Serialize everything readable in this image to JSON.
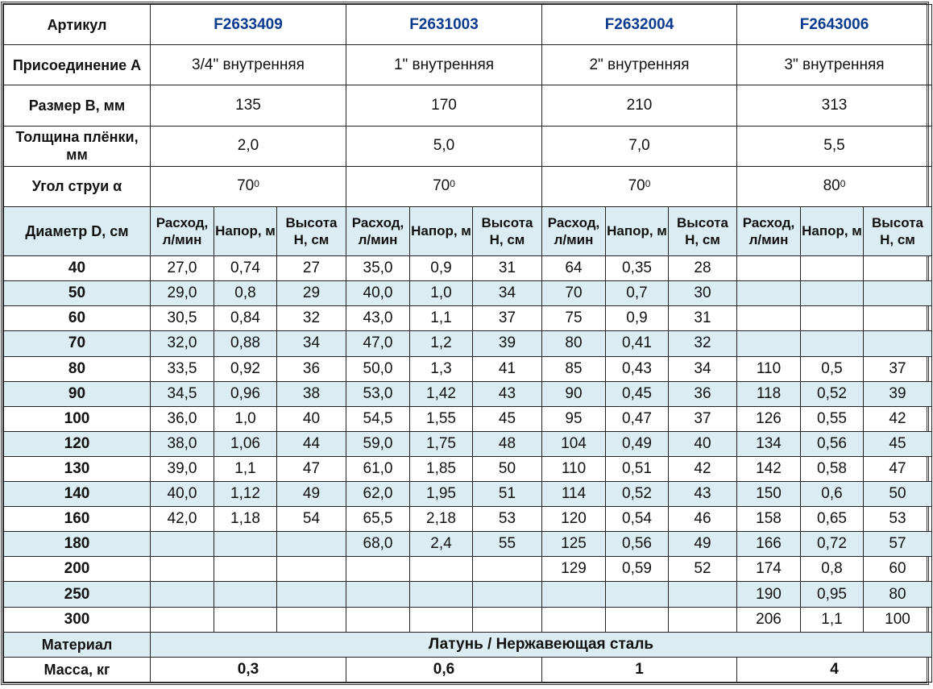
{
  "labels": {
    "article": "Артикул",
    "connection": "Присоединение А",
    "size": "Размер В, мм",
    "film": "Толщина плёнки, мм",
    "angle": "Угол струи α",
    "diameter": "Диаметр D, см",
    "material": "Материал",
    "mass": "Масса, кг"
  },
  "products": [
    {
      "article": "F2633409",
      "connection": "3/4\" внутренняя",
      "size": "135",
      "film": "2,0",
      "angle": "70",
      "angle_sup": "0",
      "mass": "0,3"
    },
    {
      "article": "F2631003",
      "connection": "1\" внутренняя",
      "size": "170",
      "film": "5,0",
      "angle": "70",
      "angle_sup": "0",
      "mass": "0,6"
    },
    {
      "article": "F2632004",
      "connection": "2\" внутренняя",
      "size": "210",
      "film": "7,0",
      "angle": "70",
      "angle_sup": "0",
      "mass": "1"
    },
    {
      "article": "F2643006",
      "connection": "3\" внутренняя",
      "size": "313",
      "film": "5,5",
      "angle": "80",
      "angle_sup": "0",
      "mass": "4"
    }
  ],
  "subheaders": [
    "Расход, л/мин",
    "Напор, м",
    "Высота Н, см"
  ],
  "material_value": "Латунь / Нержавеющая сталь",
  "rows": [
    [
      "40",
      "27,0",
      "0,74",
      "27",
      "35,0",
      "0,9",
      "31",
      "64",
      "0,35",
      "28",
      "",
      "",
      ""
    ],
    [
      "50",
      "29,0",
      "0,8",
      "29",
      "40,0",
      "1,0",
      "34",
      "70",
      "0,7",
      "30",
      "",
      "",
      ""
    ],
    [
      "60",
      "30,5",
      "0,84",
      "32",
      "43,0",
      "1,1",
      "37",
      "75",
      "0,9",
      "31",
      "",
      "",
      ""
    ],
    [
      "70",
      "32,0",
      "0,88",
      "34",
      "47,0",
      "1,2",
      "39",
      "80",
      "0,41",
      "32",
      "",
      "",
      ""
    ],
    [
      "80",
      "33,5",
      "0,92",
      "36",
      "50,0",
      "1,3",
      "41",
      "85",
      "0,43",
      "34",
      "110",
      "0,5",
      "37"
    ],
    [
      "90",
      "34,5",
      "0,96",
      "38",
      "53,0",
      "1,42",
      "43",
      "90",
      "0,45",
      "36",
      "118",
      "0,52",
      "39"
    ],
    [
      "100",
      "36,0",
      "1,0",
      "40",
      "54,5",
      "1,55",
      "45",
      "95",
      "0,47",
      "37",
      "126",
      "0,55",
      "42"
    ],
    [
      "120",
      "38,0",
      "1,06",
      "44",
      "59,0",
      "1,75",
      "48",
      "104",
      "0,49",
      "40",
      "134",
      "0,56",
      "45"
    ],
    [
      "130",
      "39,0",
      "1,1",
      "47",
      "61,0",
      "1,85",
      "50",
      "110",
      "0,51",
      "42",
      "142",
      "0,58",
      "47"
    ],
    [
      "140",
      "40,0",
      "1,12",
      "49",
      "62,0",
      "1,95",
      "51",
      "114",
      "0,52",
      "43",
      "150",
      "0,6",
      "50"
    ],
    [
      "160",
      "42,0",
      "1,18",
      "54",
      "65,5",
      "2,18",
      "53",
      "120",
      "0,54",
      "46",
      "158",
      "0,65",
      "53"
    ],
    [
      "180",
      "",
      "",
      "",
      "68,0",
      "2,4",
      "55",
      "125",
      "0,56",
      "49",
      "166",
      "0,72",
      "57"
    ],
    [
      "200",
      "",
      "",
      "",
      "",
      "",
      "",
      "129",
      "0,59",
      "52",
      "174",
      "0,8",
      "60"
    ],
    [
      "250",
      "",
      "",
      "",
      "",
      "",
      "",
      "",
      "",
      "",
      "190",
      "0,95",
      "80"
    ],
    [
      "300",
      "",
      "",
      "",
      "",
      "",
      "",
      "",
      "",
      "",
      "206",
      "1,1",
      "100"
    ]
  ],
  "colors": {
    "article": "#0b3b8f",
    "row_alt": "#dbedf3",
    "border": "#222222"
  }
}
